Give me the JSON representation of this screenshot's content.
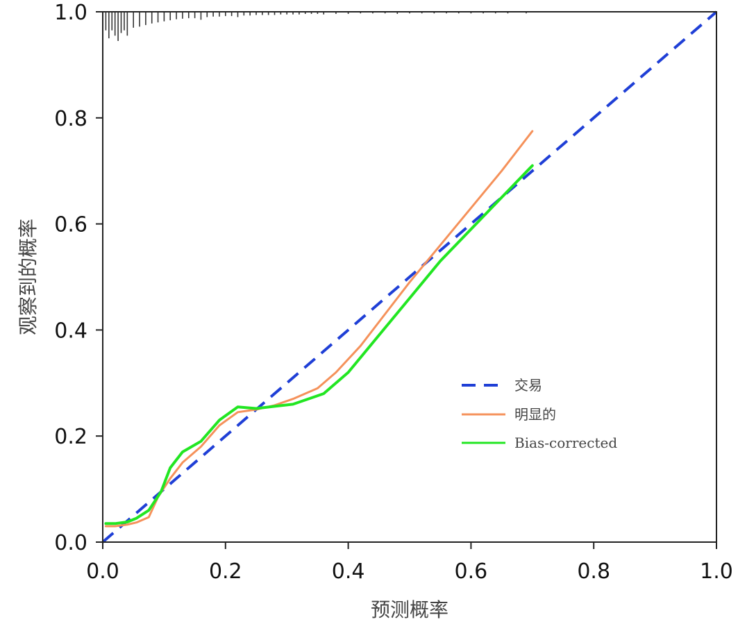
{
  "chart_data": {
    "type": "line",
    "title": "",
    "xlabel": "预测概率",
    "ylabel": "观察到的概率",
    "xlim": [
      0,
      1
    ],
    "ylim": [
      0,
      1
    ],
    "x_ticks": [
      "0.0",
      "0.2",
      "0.4",
      "0.6",
      "0.8",
      "1.0"
    ],
    "y_ticks": [
      "0.0",
      "0.2",
      "0.4",
      "0.6",
      "0.8",
      "1.0"
    ],
    "grid": false,
    "legend_position": "lower-right",
    "series": [
      {
        "name": "交易",
        "style": "dashed",
        "color": "#1f3fd6",
        "x": [
          0,
          1
        ],
        "y": [
          0,
          1
        ]
      },
      {
        "name": "明显的",
        "style": "solid",
        "color": "#f5915a",
        "x": [
          0.005,
          0.02,
          0.04,
          0.055,
          0.075,
          0.09,
          0.11,
          0.13,
          0.16,
          0.19,
          0.22,
          0.25,
          0.28,
          0.31,
          0.35,
          0.38,
          0.42,
          0.46,
          0.5,
          0.55,
          0.6,
          0.65,
          0.7
        ],
        "y": [
          0.03,
          0.03,
          0.033,
          0.037,
          0.047,
          0.085,
          0.12,
          0.15,
          0.18,
          0.22,
          0.245,
          0.25,
          0.258,
          0.27,
          0.29,
          0.32,
          0.37,
          0.43,
          0.49,
          0.56,
          0.63,
          0.7,
          0.775
        ]
      },
      {
        "name": "Bias-corrected",
        "style": "solid",
        "color": "#22e622",
        "x": [
          0.005,
          0.02,
          0.04,
          0.055,
          0.075,
          0.095,
          0.11,
          0.13,
          0.16,
          0.19,
          0.22,
          0.25,
          0.28,
          0.31,
          0.36,
          0.4,
          0.45,
          0.5,
          0.55,
          0.6,
          0.65,
          0.7
        ],
        "y": [
          0.035,
          0.035,
          0.038,
          0.045,
          0.06,
          0.095,
          0.14,
          0.17,
          0.19,
          0.23,
          0.255,
          0.252,
          0.256,
          0.26,
          0.28,
          0.32,
          0.39,
          0.46,
          0.53,
          0.59,
          0.65,
          0.71
        ]
      }
    ],
    "rug": {
      "color": "#333333",
      "x": [
        0.005,
        0.01,
        0.015,
        0.02,
        0.025,
        0.03,
        0.035,
        0.04,
        0.05,
        0.06,
        0.07,
        0.08,
        0.09,
        0.1,
        0.11,
        0.12,
        0.13,
        0.14,
        0.15,
        0.16,
        0.17,
        0.18,
        0.19,
        0.2,
        0.21,
        0.22,
        0.23,
        0.24,
        0.25,
        0.26,
        0.27,
        0.28,
        0.29,
        0.3,
        0.31,
        0.32,
        0.33,
        0.34,
        0.35,
        0.36,
        0.38,
        0.4,
        0.42,
        0.44,
        0.46,
        0.48,
        0.5,
        0.52,
        0.54,
        0.56,
        0.58,
        0.6,
        0.62,
        0.64,
        0.66,
        0.69
      ],
      "h": [
        0.035,
        0.05,
        0.035,
        0.045,
        0.055,
        0.04,
        0.035,
        0.045,
        0.03,
        0.028,
        0.025,
        0.022,
        0.02,
        0.018,
        0.016,
        0.014,
        0.013,
        0.012,
        0.012,
        0.015,
        0.01,
        0.009,
        0.009,
        0.008,
        0.008,
        0.01,
        0.007,
        0.007,
        0.006,
        0.006,
        0.006,
        0.006,
        0.005,
        0.005,
        0.005,
        0.005,
        0.004,
        0.004,
        0.004,
        0.005,
        0.004,
        0.004,
        0.003,
        0.003,
        0.003,
        0.004,
        0.003,
        0.003,
        0.003,
        0.003,
        0.003,
        0.003,
        0.003,
        0.003,
        0.003,
        0.003
      ]
    }
  }
}
